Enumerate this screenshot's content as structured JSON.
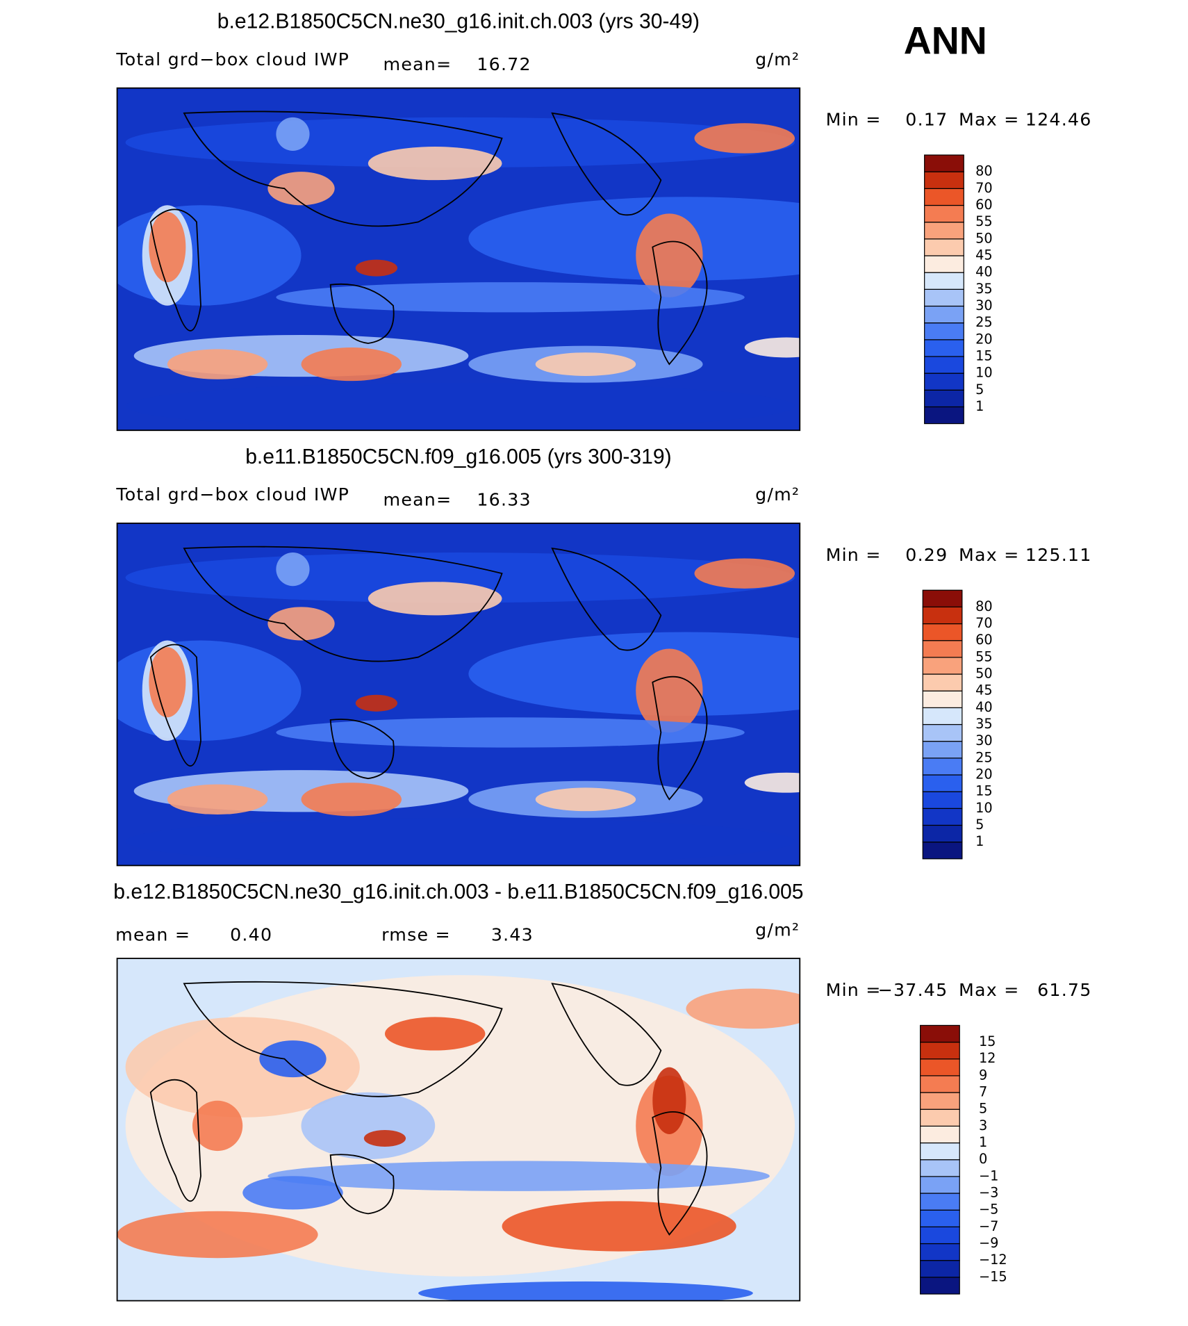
{
  "title": "ANN",
  "colors": [
    "#0a1580",
    "#0c26a6",
    "#1236c6",
    "#1a48de",
    "#2a60ee",
    "#4a7cf4",
    "#7aa2f5",
    "#a8c4f7",
    "#d6e7fb",
    "#fcece0",
    "#fccbae",
    "#f9a27c",
    "#f47c52",
    "#eb5628",
    "#c8300f",
    "#8a0e08"
  ],
  "panels": [
    {
      "title": "b.e12.B1850C5CN.ne30_g16.init.ch.003 (yrs 30-49)",
      "left_label": "Total grd−box cloud IWP",
      "mean_label": "mean=",
      "mean": "16.72",
      "units": "g/m²",
      "min_label": "Min =",
      "min": "0.17",
      "max_label": "Max =",
      "max": "124.46",
      "levels": [
        "1",
        "5",
        "10",
        "15",
        "20",
        "25",
        "30",
        "35",
        "40",
        "45",
        "50",
        "55",
        "60",
        "70",
        "80"
      ]
    },
    {
      "title": "b.e11.B1850C5CN.f09_g16.005 (yrs 300-319)",
      "left_label": "Total grd−box cloud IWP",
      "mean_label": "mean=",
      "mean": "16.33",
      "units": "g/m²",
      "min_label": "Min =",
      "min": "0.29",
      "max_label": "Max =",
      "max": "125.11",
      "levels": [
        "1",
        "5",
        "10",
        "15",
        "20",
        "25",
        "30",
        "35",
        "40",
        "45",
        "50",
        "55",
        "60",
        "70",
        "80"
      ]
    },
    {
      "title": "b.e12.B1850C5CN.ne30_g16.init.ch.003 - b.e11.B1850C5CN.f09_g16.005",
      "mean_label": "mean =",
      "mean": "0.40",
      "rmse_label": "rmse =",
      "rmse": "3.43",
      "units": "g/m²",
      "min_label": "Min =",
      "min": "−37.45",
      "max_label": "Max =",
      "max": "61.75",
      "levels": [
        "−15",
        "−12",
        "−9",
        "−7",
        "−5",
        "−3",
        "−1",
        "0",
        "1",
        "3",
        "5",
        "7",
        "9",
        "12",
        "15"
      ]
    }
  ]
}
